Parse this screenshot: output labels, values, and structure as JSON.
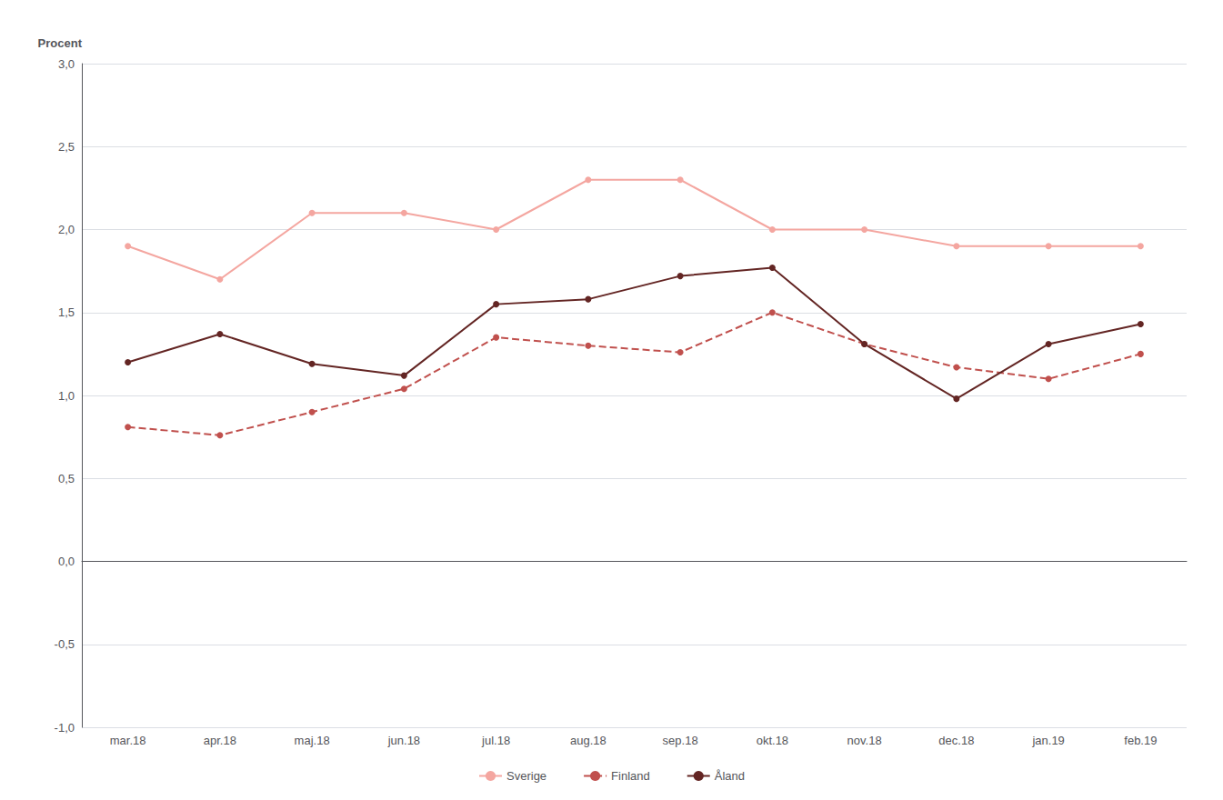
{
  "chart_data": {
    "type": "line",
    "ylabel": "Procent",
    "categories": [
      "mar.18",
      "apr.18",
      "maj.18",
      "jun.18",
      "jul.18",
      "aug.18",
      "sep.18",
      "okt.18",
      "nov.18",
      "dec.18",
      "jan.19",
      "feb.19"
    ],
    "series": [
      {
        "name": "Sverige",
        "color": "#f4a6a0",
        "line_style": "solid",
        "marker": "circle",
        "values": [
          1.9,
          1.7,
          2.1,
          2.1,
          2.0,
          2.3,
          2.3,
          2.0,
          2.0,
          1.9,
          1.9,
          1.9
        ]
      },
      {
        "name": "Finland",
        "color": "#c0504d",
        "line_style": "dashed",
        "marker": "circle",
        "values": [
          0.81,
          0.76,
          0.9,
          1.04,
          1.35,
          1.3,
          1.26,
          1.5,
          1.31,
          1.17,
          1.1,
          1.25
        ]
      },
      {
        "name": "Åland",
        "color": "#632523",
        "line_style": "solid",
        "marker": "circle",
        "values": [
          1.2,
          1.37,
          1.19,
          1.12,
          1.55,
          1.58,
          1.72,
          1.77,
          1.31,
          0.98,
          1.31,
          1.43
        ]
      }
    ],
    "ylim": [
      -1.0,
      3.0
    ],
    "yticks": [
      {
        "value": -1.0,
        "label": "-1,0"
      },
      {
        "value": -0.5,
        "label": "-0,5"
      },
      {
        "value": 0.0,
        "label": "0,0"
      },
      {
        "value": 0.5,
        "label": "0,5"
      },
      {
        "value": 1.0,
        "label": "1,0"
      },
      {
        "value": 1.5,
        "label": "1,5"
      },
      {
        "value": 2.0,
        "label": "2,0"
      },
      {
        "value": 2.5,
        "label": "2,5"
      },
      {
        "value": 3.0,
        "label": "3,0"
      }
    ],
    "grid": true,
    "legend": "bottom"
  }
}
